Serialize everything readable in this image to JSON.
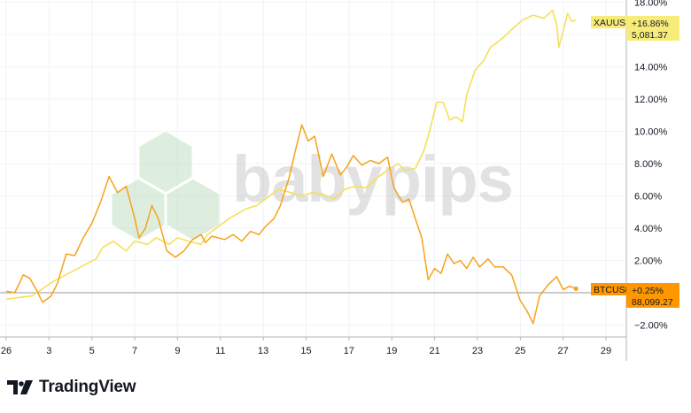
{
  "brand": {
    "name": "TradingView",
    "watermark": "babypips"
  },
  "colors": {
    "gold": "#F5E05A",
    "btc": "#F7A21B",
    "grid": "#F0F3FA",
    "zero": "#9598A1",
    "gold_tag": "#F7EC7A",
    "btc_tag": "#FF9800"
  },
  "chart_data": {
    "type": "line",
    "title": "",
    "xlabel": "",
    "ylabel": "",
    "x_ticks": [
      "26",
      "3",
      "5",
      "7",
      "9",
      "11",
      "13",
      "15",
      "17",
      "19",
      "21",
      "23",
      "25",
      "27",
      "29"
    ],
    "y_ticks": [
      "18.00%",
      "16.00%",
      "14.00%",
      "12.00%",
      "10.00%",
      "8.00%",
      "6.00%",
      "4.00%",
      "2.00%",
      "0.00%",
      "−2.00%"
    ],
    "ylim": [
      -3.2,
      18
    ],
    "xlim": [
      0,
      29.6
    ],
    "series": [
      {
        "name": "XAUUSD",
        "change": "+16.86%",
        "price": "5,081.37",
        "points": [
          [
            0,
            -0.4
          ],
          [
            1.2,
            -0.2
          ],
          [
            2.2,
            0.7
          ],
          [
            3.2,
            1.4
          ],
          [
            4.2,
            2.1
          ],
          [
            4.5,
            2.8
          ],
          [
            5,
            3.2
          ],
          [
            5.6,
            2.6
          ],
          [
            6,
            3.2
          ],
          [
            6.6,
            3.0
          ],
          [
            7,
            3.4
          ],
          [
            7.6,
            3.0
          ],
          [
            8,
            3.4
          ],
          [
            8.5,
            3.2
          ],
          [
            9.1,
            3.0
          ],
          [
            9.4,
            3.6
          ],
          [
            10.4,
            4.6
          ],
          [
            11.2,
            5.2
          ],
          [
            11.7,
            5.4
          ],
          [
            12.2,
            5.9
          ],
          [
            12.7,
            6.4
          ],
          [
            13.3,
            6.2
          ],
          [
            13.8,
            6.0
          ],
          [
            14.3,
            6.2
          ],
          [
            14.8,
            6.1
          ],
          [
            15.3,
            5.8
          ],
          [
            15.8,
            6.4
          ],
          [
            16.3,
            6.6
          ],
          [
            16.8,
            6.5
          ],
          [
            17.3,
            7.1
          ],
          [
            17.8,
            7.6
          ],
          [
            18.3,
            8.0
          ],
          [
            18.6,
            7.6
          ],
          [
            19.1,
            7.7
          ],
          [
            19.5,
            8.8
          ],
          [
            19.8,
            10.2
          ],
          [
            20.1,
            11.8
          ],
          [
            20.4,
            11.8
          ],
          [
            20.7,
            10.7
          ],
          [
            21,
            10.9
          ],
          [
            21.3,
            10.6
          ],
          [
            21.5,
            12.3
          ],
          [
            21.9,
            13.8
          ],
          [
            22.3,
            14.4
          ],
          [
            22.6,
            15.2
          ],
          [
            23.1,
            15.7
          ],
          [
            23.6,
            16.3
          ],
          [
            24.1,
            16.9
          ],
          [
            24.6,
            17.2
          ],
          [
            25.1,
            17.0
          ],
          [
            25.5,
            17.5
          ],
          [
            25.7,
            16.6
          ],
          [
            25.8,
            15.2
          ],
          [
            26,
            16.2
          ],
          [
            26.2,
            17.3
          ],
          [
            26.4,
            16.8
          ],
          [
            26.6,
            16.9
          ]
        ]
      },
      {
        "name": "BTCUSD",
        "change": "+0.25%",
        "price": "88,099.27",
        "points": [
          [
            0,
            0.1
          ],
          [
            0.4,
            0.0
          ],
          [
            0.8,
            1.1
          ],
          [
            1.1,
            0.9
          ],
          [
            1.4,
            0.2
          ],
          [
            1.7,
            -0.6
          ],
          [
            2.1,
            -0.2
          ],
          [
            2.4,
            0.6
          ],
          [
            2.8,
            2.4
          ],
          [
            3.2,
            2.3
          ],
          [
            3.6,
            3.4
          ],
          [
            4,
            4.3
          ],
          [
            4.4,
            5.6
          ],
          [
            4.8,
            7.2
          ],
          [
            5.2,
            6.2
          ],
          [
            5.6,
            6.6
          ],
          [
            6,
            4.6
          ],
          [
            6.2,
            3.4
          ],
          [
            6.5,
            4.0
          ],
          [
            6.8,
            5.4
          ],
          [
            7.1,
            4.6
          ],
          [
            7.5,
            2.6
          ],
          [
            7.9,
            2.2
          ],
          [
            8.3,
            2.6
          ],
          [
            8.7,
            3.3
          ],
          [
            9.1,
            3.6
          ],
          [
            9.3,
            3.1
          ],
          [
            9.6,
            3.5
          ],
          [
            10.2,
            3.3
          ],
          [
            10.6,
            3.6
          ],
          [
            11,
            3.2
          ],
          [
            11.4,
            3.8
          ],
          [
            11.8,
            3.6
          ],
          [
            12.1,
            4.1
          ],
          [
            12.5,
            4.6
          ],
          [
            12.8,
            5.4
          ],
          [
            13.2,
            7.1
          ],
          [
            13.5,
            8.8
          ],
          [
            13.8,
            10.4
          ],
          [
            14.1,
            9.4
          ],
          [
            14.4,
            9.7
          ],
          [
            14.8,
            7.2
          ],
          [
            15.2,
            8.6
          ],
          [
            15.6,
            7.3
          ],
          [
            15.9,
            7.8
          ],
          [
            16.2,
            8.5
          ],
          [
            16.6,
            7.9
          ],
          [
            17,
            8.2
          ],
          [
            17.4,
            8.0
          ],
          [
            17.8,
            8.4
          ],
          [
            18.1,
            6.5
          ],
          [
            18.5,
            5.6
          ],
          [
            18.8,
            5.8
          ],
          [
            19.1,
            4.6
          ],
          [
            19.4,
            3.4
          ],
          [
            19.7,
            0.8
          ],
          [
            20,
            1.5
          ],
          [
            20.3,
            1.2
          ],
          [
            20.6,
            2.4
          ],
          [
            20.9,
            1.8
          ],
          [
            21.2,
            2.0
          ],
          [
            21.5,
            1.5
          ],
          [
            21.8,
            2.2
          ],
          [
            22.1,
            1.6
          ],
          [
            22.5,
            2.1
          ],
          [
            22.8,
            1.6
          ],
          [
            23.2,
            1.6
          ],
          [
            23.6,
            1.1
          ],
          [
            24,
            -0.5
          ],
          [
            24.3,
            -1.1
          ],
          [
            24.6,
            -1.9
          ],
          [
            24.9,
            -0.2
          ],
          [
            25.3,
            0.5
          ],
          [
            25.7,
            1.0
          ],
          [
            26,
            0.2
          ],
          [
            26.3,
            0.4
          ],
          [
            26.6,
            0.25
          ]
        ]
      }
    ]
  }
}
